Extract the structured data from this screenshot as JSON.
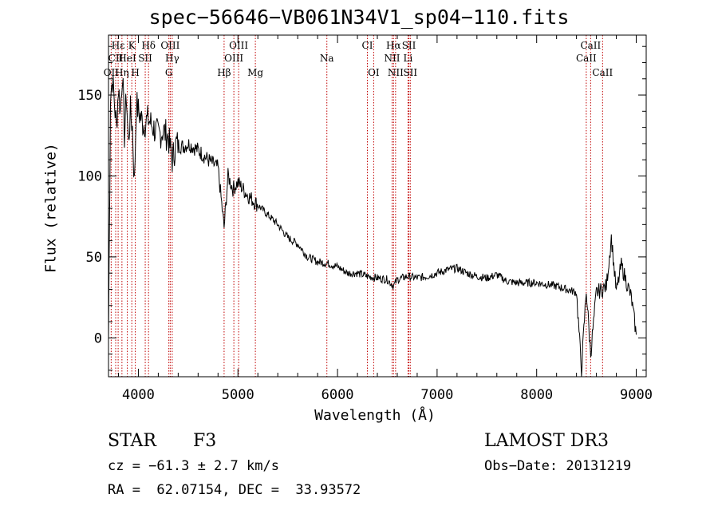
{
  "chart_data": {
    "type": "line",
    "title": "spec−56646−VB061N34V1_sp04−110.fits",
    "xlabel": "Wavelength (Å)",
    "ylabel": "Flux (relative)",
    "xlim": [
      3700,
      9100
    ],
    "ylim": [
      -24,
      187
    ],
    "xticks": [
      4000,
      5000,
      6000,
      7000,
      8000,
      9000
    ],
    "yticks": [
      0,
      50,
      100,
      150
    ],
    "series": [
      {
        "name": "spectrum",
        "x": [
          3700,
          3720,
          3740,
          3760,
          3780,
          3800,
          3820,
          3840,
          3860,
          3880,
          3900,
          3920,
          3940,
          3960,
          3980,
          4000,
          4050,
          4100,
          4150,
          4200,
          4250,
          4300,
          4340,
          4380,
          4450,
          4500,
          4600,
          4700,
          4800,
          4861,
          4900,
          4950,
          5000,
          5100,
          5200,
          5300,
          5400,
          5500,
          5600,
          5700,
          5800,
          5900,
          6000,
          6100,
          6200,
          6300,
          6400,
          6500,
          6563,
          6600,
          6700,
          6800,
          6900,
          7000,
          7100,
          7200,
          7300,
          7400,
          7500,
          7600,
          7700,
          7800,
          7900,
          8000,
          8100,
          8200,
          8300,
          8400,
          8450,
          8498,
          8542,
          8600,
          8662,
          8700,
          8750,
          8800,
          8850,
          8900,
          8950,
          9000
        ],
        "y": [
          -2,
          150,
          160,
          145,
          130,
          155,
          140,
          165,
          125,
          150,
          120,
          140,
          130,
          95,
          145,
          140,
          132,
          135,
          130,
          125,
          128,
          124,
          110,
          120,
          118,
          120,
          116,
          110,
          105,
          68,
          100,
          92,
          96,
          88,
          82,
          76,
          70,
          62,
          58,
          50,
          47,
          46,
          44,
          40,
          40,
          38,
          37,
          36,
          32,
          36,
          38,
          37,
          38,
          40,
          42,
          43,
          40,
          38,
          37,
          39,
          35,
          34,
          34,
          34,
          33,
          32,
          30,
          28,
          -20,
          30,
          -10,
          28,
          30,
          32,
          62,
          28,
          45,
          35,
          25,
          2
        ]
      }
    ],
    "lines": [
      {
        "label": "Hε",
        "wavelength": 3797,
        "row": 1
      },
      {
        "label": "CII",
        "wavelength": 3772,
        "row": 2
      },
      {
        "label": "OII",
        "wavelength": 3727,
        "row": 3
      },
      {
        "label": "Hη",
        "wavelength": 3835,
        "row": 3
      },
      {
        "label": "HeI",
        "wavelength": 3889,
        "row": 2
      },
      {
        "label": "K",
        "wavelength": 3934,
        "row": 1
      },
      {
        "label": "H",
        "wavelength": 3969,
        "row": 3
      },
      {
        "label": "SII",
        "wavelength": 4069,
        "row": 2
      },
      {
        "label": "Hδ",
        "wavelength": 4102,
        "row": 1
      },
      {
        "label": "OIII",
        "wavelength": 4320,
        "row": 1
      },
      {
        "label": "Hγ",
        "wavelength": 4340,
        "row": 2
      },
      {
        "label": "G",
        "wavelength": 4306,
        "row": 3
      },
      {
        "label": "Hβ",
        "wavelength": 4861,
        "row": 3
      },
      {
        "label": "OIII",
        "wavelength": 4959,
        "row": 2
      },
      {
        "label": "OIII",
        "wavelength": 5007,
        "row": 1
      },
      {
        "label": "Mg",
        "wavelength": 5175,
        "row": 3
      },
      {
        "label": "Na",
        "wavelength": 5893,
        "row": 2
      },
      {
        "label": "CI",
        "wavelength": 6300,
        "row": 1
      },
      {
        "label": "OI",
        "wavelength": 6363,
        "row": 3
      },
      {
        "label": "Hα",
        "wavelength": 6563,
        "row": 1
      },
      {
        "label": "NII",
        "wavelength": 6548,
        "row": 2
      },
      {
        "label": "NII",
        "wavelength": 6583,
        "row": 3
      },
      {
        "label": "SII",
        "wavelength": 6717,
        "row": 1
      },
      {
        "label": "Li",
        "wavelength": 6708,
        "row": 2
      },
      {
        "label": "SII",
        "wavelength": 6731,
        "row": 3
      },
      {
        "label": "CaII",
        "wavelength": 8542,
        "row": 1
      },
      {
        "label": "CaII",
        "wavelength": 8498,
        "row": 2
      },
      {
        "label": "CaII",
        "wavelength": 8662,
        "row": 3
      }
    ]
  },
  "info": {
    "object_type": "STAR",
    "subclass": "F3",
    "survey": "LAMOST DR3",
    "cz": "cz = −61.3 ± 2.7 km/s",
    "obs_date": "Obs−Date: 20131219",
    "coords": "RA =  62.07154, DEC =  33.93572"
  }
}
